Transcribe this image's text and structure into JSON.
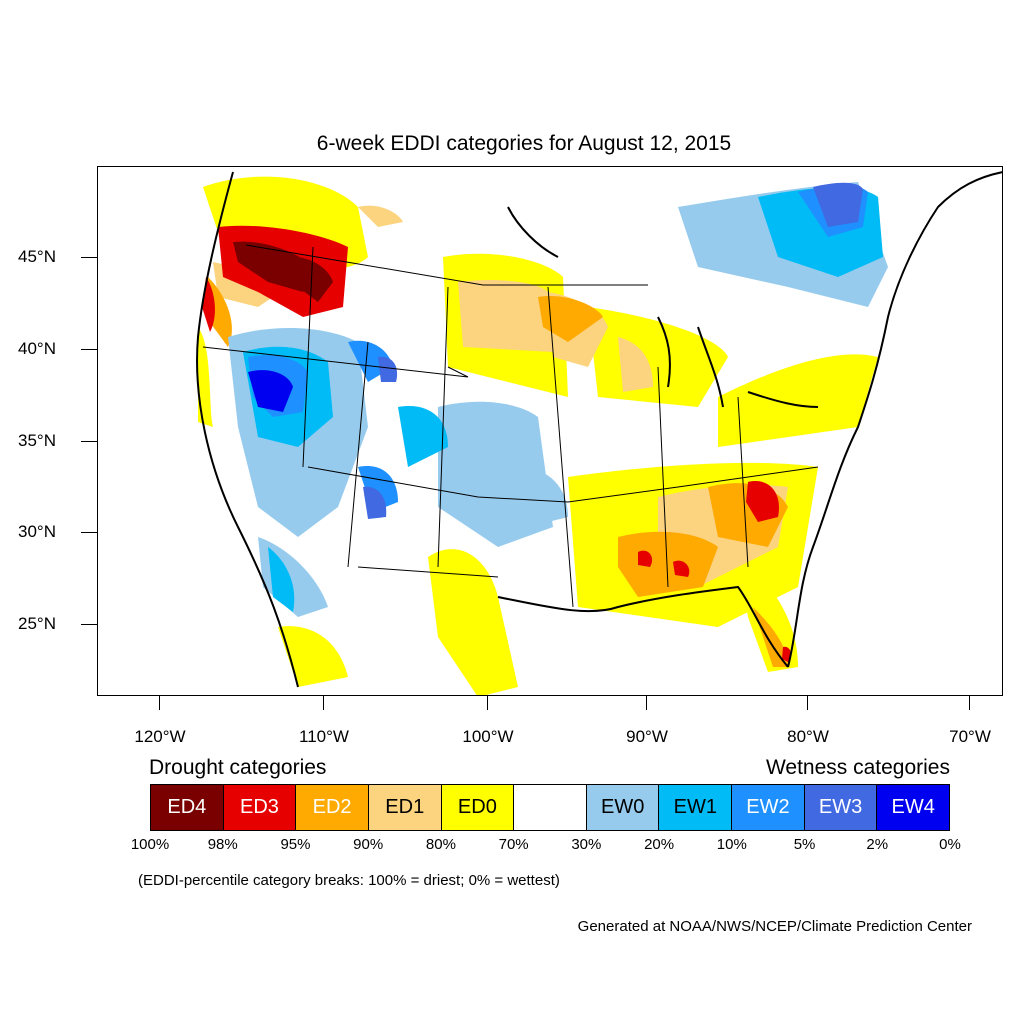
{
  "title": "6-week EDDI categories for August 12, 2015",
  "map": {
    "lat_labels": [
      "45°N",
      "40°N",
      "35°N",
      "30°N",
      "25°N"
    ],
    "lon_labels": [
      "120°W",
      "110°W",
      "100°W",
      "90°W",
      "80°W",
      "70°W"
    ]
  },
  "legend": {
    "drought_heading": "Drought categories",
    "wetness_heading": "Wetness categories",
    "categories": [
      {
        "label": "ED4",
        "color": "#7a0000",
        "text_color": "#ffffff"
      },
      {
        "label": "ED3",
        "color": "#e60000",
        "text_color": "#ffffff"
      },
      {
        "label": "ED2",
        "color": "#ffaa00",
        "text_color": "#ffffff"
      },
      {
        "label": "ED1",
        "color": "#fcd37f",
        "text_color": "#000000"
      },
      {
        "label": "ED0",
        "color": "#ffff00",
        "text_color": "#000000"
      },
      {
        "label": "",
        "color": "#ffffff",
        "text_color": "#000000"
      },
      {
        "label": "EW0",
        "color": "#97cbee",
        "text_color": "#000000"
      },
      {
        "label": "EW1",
        "color": "#00bbf5",
        "text_color": "#000000"
      },
      {
        "label": "EW2",
        "color": "#1e90ff",
        "text_color": "#ffffff"
      },
      {
        "label": "EW3",
        "color": "#4169e1",
        "text_color": "#ffffff"
      },
      {
        "label": "EW4",
        "color": "#0000f0",
        "text_color": "#ffffff"
      }
    ],
    "breaks": [
      "100%",
      "98%",
      "95%",
      "90%",
      "80%",
      "70%",
      "30%",
      "20%",
      "10%",
      "5%",
      "2%",
      "0%"
    ]
  },
  "note": "(EDDI-percentile category breaks: 100% = driest; 0% = wettest)",
  "credit": "Generated at NOAA/NWS/NCEP/Climate Prediction Center"
}
